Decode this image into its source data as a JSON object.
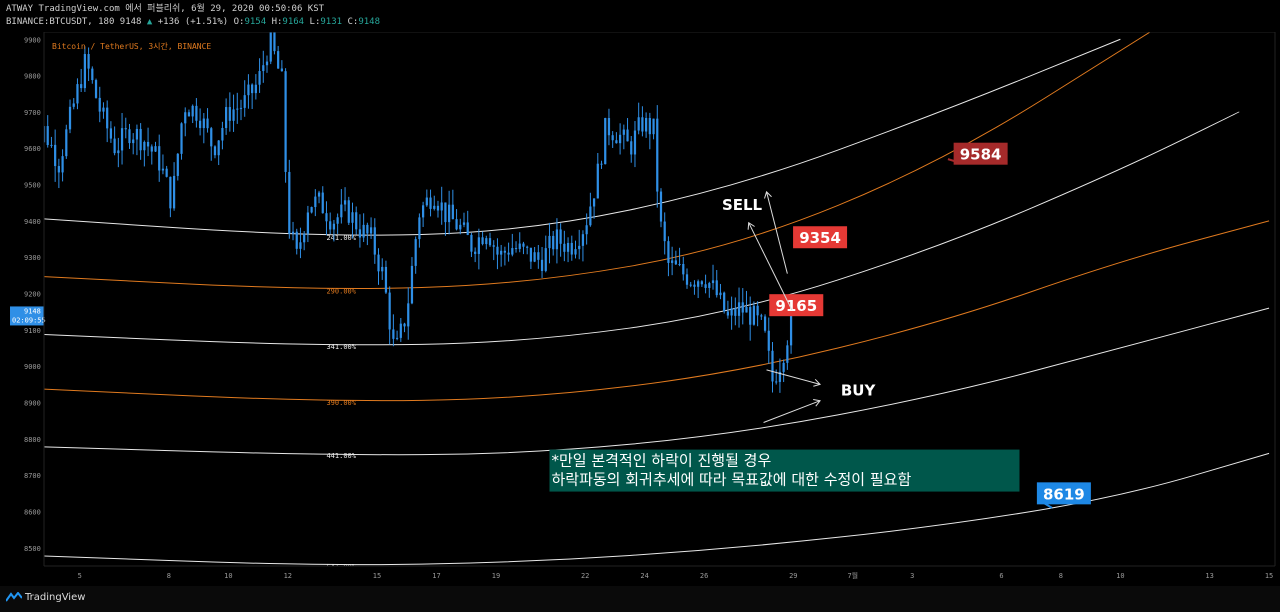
{
  "header": {
    "line1": "ATWAY TradingView.com 에서 퍼블리쉬, 6월 29, 2020 00:50:06 KST",
    "line2_symbol": "BINANCE:BTCUSDT, 180",
    "line2_last": "9148",
    "line2_change": "+136 (+1.51%)",
    "o_label": "O:",
    "o_value": "9154",
    "h_label": "H:",
    "h_value": "9164",
    "l_label": "L:",
    "l_value": "9131",
    "c_label": "C:",
    "c_value": "9148"
  },
  "chart_data": {
    "type": "candlestick",
    "title": "Bitcoin / TetherUS, 3시간, BINANCE",
    "ylim": [
      8450,
      9920
    ],
    "y_ticks": [
      9900,
      9800,
      9700,
      9600,
      9500,
      9400,
      9300,
      9200,
      9100,
      9000,
      8900,
      8800,
      8700,
      8600,
      8500
    ],
    "x_ticks": [
      {
        "label": "5",
        "day": 5
      },
      {
        "label": "8",
        "day": 8
      },
      {
        "label": "10",
        "day": 10
      },
      {
        "label": "12",
        "day": 12
      },
      {
        "label": "15",
        "day": 15
      },
      {
        "label": "17",
        "day": 17
      },
      {
        "label": "19",
        "day": 19
      },
      {
        "label": "22",
        "day": 22
      },
      {
        "label": "24",
        "day": 24
      },
      {
        "label": "26",
        "day": 26
      },
      {
        "label": "29",
        "day": 29
      },
      {
        "label": "7월",
        "day": 31
      },
      {
        "label": "3",
        "day": 33
      },
      {
        "label": "6",
        "day": 36
      },
      {
        "label": "8",
        "day": 38
      },
      {
        "label": "10",
        "day": 40
      },
      {
        "label": "13",
        "day": 43
      },
      {
        "label": "15",
        "day": 45
      }
    ],
    "last_price": "9148",
    "countdown": "02:09:55",
    "price_path": [
      {
        "day": 3.3,
        "price": 9540
      },
      {
        "day": 3.8,
        "price": 9650
      },
      {
        "day": 4.3,
        "price": 9560
      },
      {
        "day": 4.8,
        "price": 9720
      },
      {
        "day": 5.2,
        "price": 9840
      },
      {
        "day": 5.7,
        "price": 9700
      },
      {
        "day": 6.2,
        "price": 9600
      },
      {
        "day": 6.7,
        "price": 9650
      },
      {
        "day": 7.2,
        "price": 9620
      },
      {
        "day": 7.7,
        "price": 9560
      },
      {
        "day": 8.1,
        "price": 9450
      },
      {
        "day": 8.5,
        "price": 9720
      },
      {
        "day": 9.0,
        "price": 9700
      },
      {
        "day": 9.5,
        "price": 9600
      },
      {
        "day": 10.0,
        "price": 9700
      },
      {
        "day": 10.5,
        "price": 9720
      },
      {
        "day": 11.0,
        "price": 9780
      },
      {
        "day": 11.4,
        "price": 9900
      },
      {
        "day": 11.8,
        "price": 9780
      },
      {
        "day": 12.0,
        "price": 9400
      },
      {
        "day": 12.3,
        "price": 9300
      },
      {
        "day": 12.7,
        "price": 9450
      },
      {
        "day": 13.1,
        "price": 9450
      },
      {
        "day": 13.5,
        "price": 9400
      },
      {
        "day": 14.0,
        "price": 9430
      },
      {
        "day": 14.4,
        "price": 9380
      },
      {
        "day": 14.8,
        "price": 9350
      },
      {
        "day": 15.2,
        "price": 9250
      },
      {
        "day": 15.6,
        "price": 9030
      },
      {
        "day": 16.0,
        "price": 9150
      },
      {
        "day": 16.4,
        "price": 9420
      },
      {
        "day": 16.9,
        "price": 9480
      },
      {
        "day": 17.3,
        "price": 9420
      },
      {
        "day": 17.8,
        "price": 9380
      },
      {
        "day": 18.2,
        "price": 9330
      },
      {
        "day": 18.7,
        "price": 9380
      },
      {
        "day": 19.1,
        "price": 9300
      },
      {
        "day": 19.5,
        "price": 9330
      },
      {
        "day": 20.0,
        "price": 9310
      },
      {
        "day": 20.5,
        "price": 9290
      },
      {
        "day": 21.0,
        "price": 9350
      },
      {
        "day": 21.5,
        "price": 9330
      },
      {
        "day": 22.0,
        "price": 9390
      },
      {
        "day": 22.4,
        "price": 9520
      },
      {
        "day": 22.7,
        "price": 9660
      },
      {
        "day": 23.1,
        "price": 9640
      },
      {
        "day": 23.5,
        "price": 9600
      },
      {
        "day": 23.9,
        "price": 9670
      },
      {
        "day": 24.3,
        "price": 9650
      },
      {
        "day": 24.5,
        "price": 9400
      },
      {
        "day": 24.8,
        "price": 9280
      },
      {
        "day": 25.2,
        "price": 9260
      },
      {
        "day": 25.6,
        "price": 9240
      },
      {
        "day": 26.0,
        "price": 9250
      },
      {
        "day": 26.4,
        "price": 9200
      },
      {
        "day": 26.8,
        "price": 9130
      },
      {
        "day": 27.2,
        "price": 9160
      },
      {
        "day": 27.6,
        "price": 9140
      },
      {
        "day": 28.0,
        "price": 9100
      },
      {
        "day": 28.3,
        "price": 8960
      },
      {
        "day": 28.6,
        "price": 9020
      },
      {
        "day": 29.0,
        "price": 9148
      }
    ],
    "fib_arcs": [
      {
        "label": "241.00%",
        "color": "#e8e8e8",
        "points": [
          [
            3,
            9410
          ],
          [
            13,
            9355
          ],
          [
            20,
            9370
          ],
          [
            27,
            9490
          ],
          [
            34,
            9700
          ],
          [
            40,
            9900
          ]
        ]
      },
      {
        "label": "290.00%",
        "color": "#e07a1f",
        "points": [
          [
            3,
            9250
          ],
          [
            13,
            9208
          ],
          [
            20,
            9225
          ],
          [
            27,
            9325
          ],
          [
            34,
            9560
          ],
          [
            41,
            9920
          ]
        ]
      },
      {
        "label": "341.00%",
        "color": "#e8e8e8",
        "points": [
          [
            3,
            9090
          ],
          [
            13,
            9055
          ],
          [
            20,
            9065
          ],
          [
            27,
            9145
          ],
          [
            34,
            9330
          ],
          [
            40,
            9540
          ],
          [
            44,
            9700
          ]
        ]
      },
      {
        "label": "390.00%",
        "color": "#e07a1f",
        "points": [
          [
            3,
            8940
          ],
          [
            13,
            8902
          ],
          [
            20,
            8910
          ],
          [
            27,
            8980
          ],
          [
            34,
            9120
          ],
          [
            40,
            9290
          ],
          [
            45,
            9400
          ]
        ]
      },
      {
        "label": "441.00%",
        "color": "#e8e8e8",
        "points": [
          [
            3,
            8780
          ],
          [
            13,
            8755
          ],
          [
            20,
            8758
          ],
          [
            27,
            8812
          ],
          [
            34,
            8920
          ],
          [
            40,
            9050
          ],
          [
            45,
            9160
          ]
        ]
      },
      {
        "label": "541.00%",
        "color": "#e8e8e8",
        "points": [
          [
            3,
            8480
          ],
          [
            13,
            8450
          ],
          [
            20,
            8460
          ],
          [
            27,
            8498
          ],
          [
            34,
            8560
          ],
          [
            40,
            8640
          ],
          [
            45,
            8760
          ]
        ]
      }
    ],
    "annotations": {
      "sell_label": "SELL",
      "buy_label": "BUY",
      "price_tags": [
        {
          "text": "9584",
          "day": 35.3,
          "price": 9585,
          "color": "#a52a2a",
          "tail_day": 34.2,
          "tail_price": 9570
        },
        {
          "text": "9354",
          "day": 29.9,
          "price": 9355,
          "color": "#e53935",
          "tail_day": 29.0,
          "tail_price": 9335
        },
        {
          "text": "9165",
          "day": 29.1,
          "price": 9168,
          "color": "#e53935",
          "tail_day": 28.9,
          "tail_price": 9162
        },
        {
          "text": "8619",
          "day": 38.1,
          "price": 8650,
          "color": "#1e88e5",
          "tail_day": 37.7,
          "tail_price": 8610
        }
      ],
      "note_line1": "*만일 본격적인 하락이 진행될 경우",
      "note_line2": "하락파동의 회귀추세에 따라 목표값에 대한 수정이 필요함"
    }
  },
  "footer": {
    "brand": "TradingView"
  }
}
